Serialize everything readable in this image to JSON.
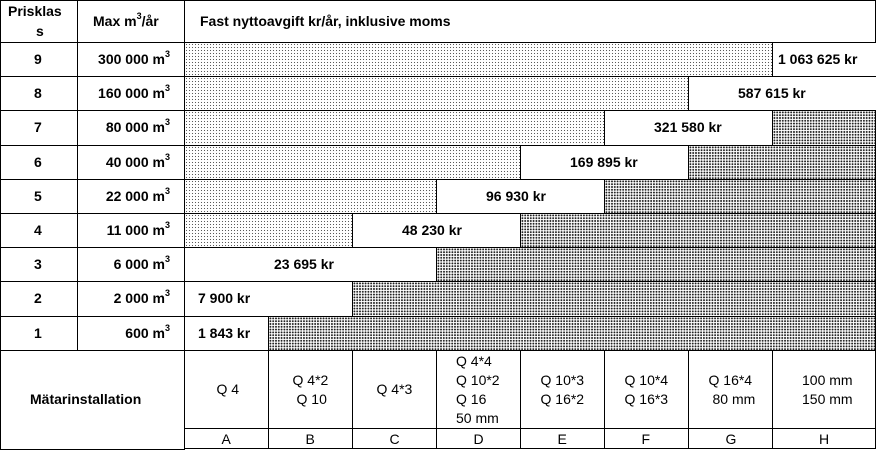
{
  "header": {
    "col1_line1": "Prisklas",
    "col1_line2": "s",
    "col2": "Max m",
    "col2_sup": "3",
    "col2_suffix": "/år",
    "col3": "Fast nyttoavgift kr/år, inklusive moms"
  },
  "rows": [
    {
      "klass": "9",
      "max": "300 000 m",
      "sup": "3",
      "fee": "1 063 625 kr",
      "start_col": 7,
      "span": 1
    },
    {
      "klass": "8",
      "max": "160 000 m",
      "sup": "3",
      "fee": "587 615 kr",
      "start_col": 6,
      "span": 2
    },
    {
      "klass": "7",
      "max": "80 000 m",
      "sup": "3",
      "fee": "321 580 kr",
      "start_col": 5,
      "span": 2
    },
    {
      "klass": "6",
      "max": "40 000 m",
      "sup": "3",
      "fee": "169 895 kr",
      "start_col": 4,
      "span": 2
    },
    {
      "klass": "5",
      "max": "22 000 m",
      "sup": "3",
      "fee": "96 930 kr",
      "start_col": 3,
      "span": 2
    },
    {
      "klass": "4",
      "max": "11 000 m",
      "sup": "3",
      "fee": "48 230 kr",
      "start_col": 2,
      "span": 2
    },
    {
      "klass": "3",
      "max": "6 000 m",
      "sup": "3",
      "fee": "23 695 kr",
      "start_col": 0,
      "span": 3
    },
    {
      "klass": "2",
      "max": "2 000 m",
      "sup": "3",
      "fee": "7 900 kr",
      "start_col": 0,
      "span": 2
    },
    {
      "klass": "1",
      "max": "600 m",
      "sup": "3",
      "fee": "1 843 kr",
      "start_col": 0,
      "span": 1
    }
  ],
  "matar_label": "Mätarinstallation",
  "meters": [
    {
      "lines": [
        "Q 4"
      ]
    },
    {
      "lines": [
        "Q 4*2",
        "Q 10"
      ]
    },
    {
      "lines": [
        "Q 4*3"
      ]
    },
    {
      "lines": [
        "Q 4*4",
        "Q 10*2",
        "Q 16",
        "50 mm"
      ]
    },
    {
      "lines": [
        "Q 10*3",
        "Q 16*2"
      ]
    },
    {
      "lines": [
        "Q 10*4",
        "Q 16*3"
      ]
    },
    {
      "lines": [
        "Q 16*4",
        "80 mm"
      ]
    },
    {
      "lines": [
        "100 mm",
        "150 mm"
      ]
    }
  ],
  "letters": [
    "A",
    "B",
    "C",
    "D",
    "E",
    "F",
    "G",
    "H"
  ]
}
